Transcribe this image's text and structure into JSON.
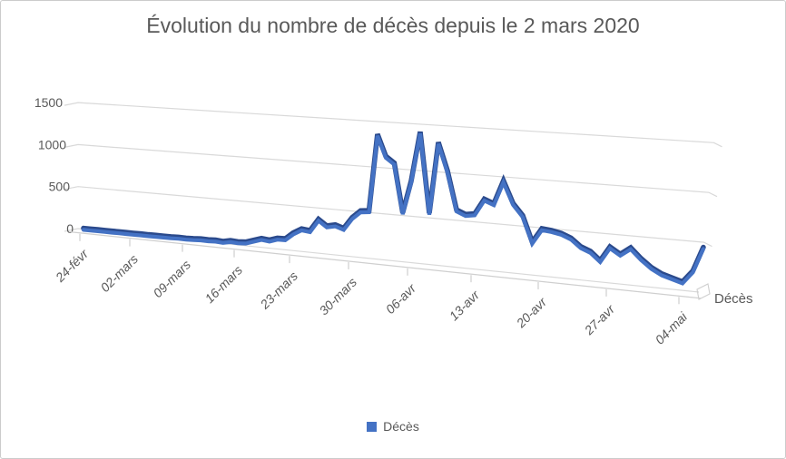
{
  "chart_data": {
    "type": "line",
    "style": "3d-perspective-line",
    "title": "Évolution du nombre de décès depuis le 2 mars 2020",
    "series_axis_label": "Décès",
    "legend": [
      "Décès"
    ],
    "legend_position": "bottom",
    "grid": true,
    "ylim": [
      0,
      1500
    ],
    "y_ticks": [
      0,
      500,
      1000,
      1500
    ],
    "x_tick_labels": [
      "24-févr",
      "02-mars",
      "09-mars",
      "16-mars",
      "23-mars",
      "30-mars",
      "06-avr",
      "13-avr",
      "20-avr",
      "27-avr",
      "04-mai"
    ],
    "series": [
      {
        "name": "Décès",
        "dates": [
          "2020-02-24",
          "2020-02-25",
          "2020-02-26",
          "2020-02-27",
          "2020-02-28",
          "2020-02-29",
          "2020-03-01",
          "2020-03-02",
          "2020-03-03",
          "2020-03-04",
          "2020-03-05",
          "2020-03-06",
          "2020-03-07",
          "2020-03-08",
          "2020-03-09",
          "2020-03-10",
          "2020-03-11",
          "2020-03-12",
          "2020-03-13",
          "2020-03-14",
          "2020-03-15",
          "2020-03-16",
          "2020-03-17",
          "2020-03-18",
          "2020-03-19",
          "2020-03-20",
          "2020-03-21",
          "2020-03-22",
          "2020-03-23",
          "2020-03-24",
          "2020-03-25",
          "2020-03-26",
          "2020-03-27",
          "2020-03-28",
          "2020-03-29",
          "2020-03-30",
          "2020-03-31",
          "2020-04-01",
          "2020-04-02",
          "2020-04-03",
          "2020-04-04",
          "2020-04-05",
          "2020-04-06",
          "2020-04-07",
          "2020-04-08",
          "2020-04-09",
          "2020-04-10",
          "2020-04-11",
          "2020-04-12",
          "2020-04-13",
          "2020-04-14",
          "2020-04-15",
          "2020-04-16",
          "2020-04-17",
          "2020-04-18",
          "2020-04-19",
          "2020-04-20",
          "2020-04-21",
          "2020-04-22",
          "2020-04-23",
          "2020-04-24",
          "2020-04-25",
          "2020-04-26",
          "2020-04-27",
          "2020-04-28",
          "2020-04-29",
          "2020-04-30",
          "2020-05-01",
          "2020-05-02",
          "2020-05-03",
          "2020-05-04",
          "2020-05-05",
          "2020-05-06"
        ],
        "values": [
          0,
          0,
          1,
          1,
          1,
          2,
          2,
          2,
          3,
          3,
          4,
          4,
          5,
          8,
          6,
          10,
          15,
          13,
          18,
          12,
          30,
          25,
          30,
          60,
          90,
          80,
          110,
          112,
          186,
          240,
          230,
          365,
          300,
          320,
          290,
          418,
          500,
          510,
          1355,
          1120,
          1053,
          520,
          870,
          1410,
          540,
          1310,
          1010,
          600,
          560,
          575,
          740,
          700,
          950,
          720,
          600,
          330,
          480,
          470,
          450,
          410,
          330,
          290,
          205,
          355,
          290,
          365,
          265,
          185,
          130,
          100,
          70,
          190,
          435
        ]
      }
    ],
    "colors": {
      "line": "#4472C4",
      "line_edge": "#2b4a8c",
      "gridline": "#d9d9d9",
      "axis": "#cfcfcf",
      "text": "#595959"
    }
  }
}
